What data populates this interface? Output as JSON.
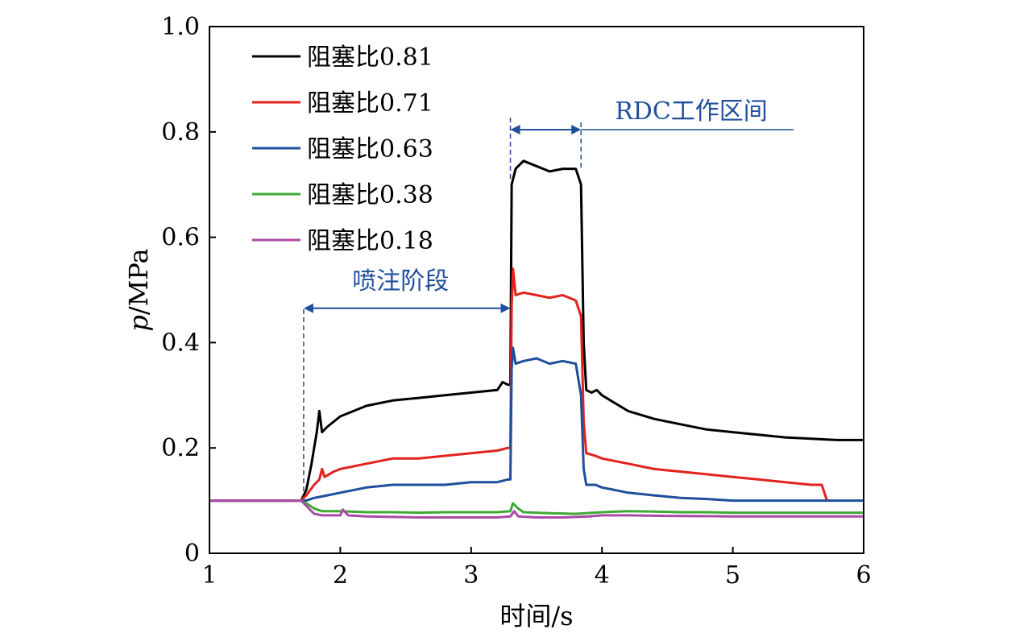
{
  "chart_data": {
    "type": "line",
    "xlabel": "时间/s",
    "ylabel_italic": "p",
    "ylabel_rest": "/MPa",
    "xlim": [
      1,
      6
    ],
    "ylim": [
      0,
      1.0
    ],
    "xticks": [
      1,
      2,
      3,
      4,
      5,
      6
    ],
    "xtick_labels": [
      "1",
      "2",
      "3",
      "4",
      "5",
      "6"
    ],
    "yticks": [
      0,
      0.2,
      0.4,
      0.6,
      0.8,
      1.0
    ],
    "ytick_labels": [
      "0",
      "0.2",
      "0.4",
      "0.6",
      "0.8",
      "1.0"
    ],
    "grid": false,
    "legend_position": "top-left",
    "annotations": [
      {
        "text": "喷注阶段",
        "x_start": 1.72,
        "x_end": 3.3,
        "y": 0.43,
        "color": "#1f4e9c"
      },
      {
        "text": "RDC工作区间",
        "x_start": 3.3,
        "x_end": 3.84,
        "y": 0.8,
        "color": "#1f4e9c"
      }
    ],
    "series": [
      {
        "name": "阻塞比0.81",
        "color": "#000000",
        "points": [
          [
            1.0,
            0.1
          ],
          [
            1.7,
            0.1
          ],
          [
            1.74,
            0.12
          ],
          [
            1.78,
            0.17
          ],
          [
            1.8,
            0.2
          ],
          [
            1.82,
            0.23
          ],
          [
            1.84,
            0.27
          ],
          [
            1.86,
            0.23
          ],
          [
            1.9,
            0.24
          ],
          [
            2.0,
            0.26
          ],
          [
            2.2,
            0.28
          ],
          [
            2.4,
            0.29
          ],
          [
            2.6,
            0.295
          ],
          [
            2.8,
            0.3
          ],
          [
            3.0,
            0.305
          ],
          [
            3.2,
            0.31
          ],
          [
            3.24,
            0.325
          ],
          [
            3.28,
            0.32
          ],
          [
            3.3,
            0.32
          ],
          [
            3.31,
            0.7
          ],
          [
            3.34,
            0.73
          ],
          [
            3.4,
            0.745
          ],
          [
            3.5,
            0.735
          ],
          [
            3.6,
            0.725
          ],
          [
            3.7,
            0.73
          ],
          [
            3.8,
            0.73
          ],
          [
            3.84,
            0.7
          ],
          [
            3.86,
            0.4
          ],
          [
            3.88,
            0.31
          ],
          [
            3.92,
            0.305
          ],
          [
            3.96,
            0.31
          ],
          [
            4.0,
            0.3
          ],
          [
            4.2,
            0.27
          ],
          [
            4.4,
            0.255
          ],
          [
            4.6,
            0.245
          ],
          [
            4.8,
            0.235
          ],
          [
            5.0,
            0.23
          ],
          [
            5.4,
            0.22
          ],
          [
            5.8,
            0.215
          ],
          [
            6.0,
            0.215
          ]
        ]
      },
      {
        "name": "阻塞比0.71",
        "color": "#e3211d",
        "points": [
          [
            1.0,
            0.1
          ],
          [
            1.7,
            0.1
          ],
          [
            1.74,
            0.11
          ],
          [
            1.8,
            0.13
          ],
          [
            1.84,
            0.14
          ],
          [
            1.86,
            0.16
          ],
          [
            1.88,
            0.145
          ],
          [
            1.95,
            0.155
          ],
          [
            2.0,
            0.16
          ],
          [
            2.2,
            0.17
          ],
          [
            2.4,
            0.18
          ],
          [
            2.6,
            0.18
          ],
          [
            2.8,
            0.185
          ],
          [
            3.0,
            0.19
          ],
          [
            3.2,
            0.195
          ],
          [
            3.28,
            0.2
          ],
          [
            3.3,
            0.2
          ],
          [
            3.31,
            0.47
          ],
          [
            3.32,
            0.54
          ],
          [
            3.34,
            0.49
          ],
          [
            3.4,
            0.495
          ],
          [
            3.5,
            0.49
          ],
          [
            3.6,
            0.485
          ],
          [
            3.7,
            0.49
          ],
          [
            3.8,
            0.48
          ],
          [
            3.84,
            0.45
          ],
          [
            3.86,
            0.25
          ],
          [
            3.88,
            0.19
          ],
          [
            3.95,
            0.185
          ],
          [
            4.0,
            0.18
          ],
          [
            4.2,
            0.17
          ],
          [
            4.4,
            0.16
          ],
          [
            4.6,
            0.155
          ],
          [
            4.8,
            0.15
          ],
          [
            5.0,
            0.145
          ],
          [
            5.2,
            0.14
          ],
          [
            5.4,
            0.135
          ],
          [
            5.6,
            0.13
          ],
          [
            5.68,
            0.13
          ],
          [
            5.72,
            0.1
          ]
        ]
      },
      {
        "name": "阻塞比0.63",
        "color": "#1f4e9c",
        "points": [
          [
            1.0,
            0.1
          ],
          [
            1.7,
            0.1
          ],
          [
            1.74,
            0.1
          ],
          [
            1.8,
            0.105
          ],
          [
            1.9,
            0.11
          ],
          [
            2.0,
            0.115
          ],
          [
            2.2,
            0.125
          ],
          [
            2.4,
            0.13
          ],
          [
            2.6,
            0.13
          ],
          [
            2.8,
            0.13
          ],
          [
            3.0,
            0.135
          ],
          [
            3.2,
            0.135
          ],
          [
            3.28,
            0.14
          ],
          [
            3.3,
            0.14
          ],
          [
            3.31,
            0.35
          ],
          [
            3.32,
            0.39
          ],
          [
            3.34,
            0.36
          ],
          [
            3.4,
            0.365
          ],
          [
            3.5,
            0.37
          ],
          [
            3.6,
            0.36
          ],
          [
            3.7,
            0.365
          ],
          [
            3.8,
            0.36
          ],
          [
            3.84,
            0.3
          ],
          [
            3.86,
            0.16
          ],
          [
            3.88,
            0.13
          ],
          [
            3.95,
            0.13
          ],
          [
            4.0,
            0.125
          ],
          [
            4.2,
            0.115
          ],
          [
            4.4,
            0.11
          ],
          [
            4.6,
            0.105
          ],
          [
            4.8,
            0.103
          ],
          [
            5.0,
            0.1
          ],
          [
            5.5,
            0.1
          ],
          [
            6.0,
            0.1
          ]
        ]
      },
      {
        "name": "阻塞比0.38",
        "color": "#3ea934",
        "points": [
          [
            1.0,
            0.1
          ],
          [
            1.7,
            0.1
          ],
          [
            1.74,
            0.095
          ],
          [
            1.8,
            0.085
          ],
          [
            1.86,
            0.08
          ],
          [
            2.0,
            0.08
          ],
          [
            2.2,
            0.078
          ],
          [
            2.4,
            0.078
          ],
          [
            2.6,
            0.077
          ],
          [
            2.8,
            0.078
          ],
          [
            3.0,
            0.078
          ],
          [
            3.2,
            0.078
          ],
          [
            3.3,
            0.08
          ],
          [
            3.32,
            0.095
          ],
          [
            3.36,
            0.085
          ],
          [
            3.4,
            0.078
          ],
          [
            3.6,
            0.076
          ],
          [
            3.8,
            0.075
          ],
          [
            4.0,
            0.078
          ],
          [
            4.2,
            0.08
          ],
          [
            4.4,
            0.079
          ],
          [
            4.6,
            0.078
          ],
          [
            4.8,
            0.078
          ],
          [
            5.0,
            0.077
          ],
          [
            5.5,
            0.077
          ],
          [
            6.0,
            0.077
          ]
        ]
      },
      {
        "name": "阻塞比0.18",
        "color": "#a94ba6",
        "points": [
          [
            1.0,
            0.1
          ],
          [
            1.7,
            0.1
          ],
          [
            1.74,
            0.09
          ],
          [
            1.8,
            0.075
          ],
          [
            1.86,
            0.072
          ],
          [
            2.0,
            0.072
          ],
          [
            2.02,
            0.083
          ],
          [
            2.06,
            0.072
          ],
          [
            2.2,
            0.07
          ],
          [
            2.4,
            0.069
          ],
          [
            2.6,
            0.068
          ],
          [
            2.8,
            0.068
          ],
          [
            3.0,
            0.068
          ],
          [
            3.2,
            0.068
          ],
          [
            3.3,
            0.07
          ],
          [
            3.33,
            0.08
          ],
          [
            3.36,
            0.07
          ],
          [
            3.5,
            0.068
          ],
          [
            3.7,
            0.068
          ],
          [
            3.9,
            0.07
          ],
          [
            4.0,
            0.072
          ],
          [
            4.2,
            0.072
          ],
          [
            4.5,
            0.071
          ],
          [
            5.0,
            0.07
          ],
          [
            5.5,
            0.07
          ],
          [
            6.0,
            0.07
          ]
        ]
      }
    ]
  }
}
